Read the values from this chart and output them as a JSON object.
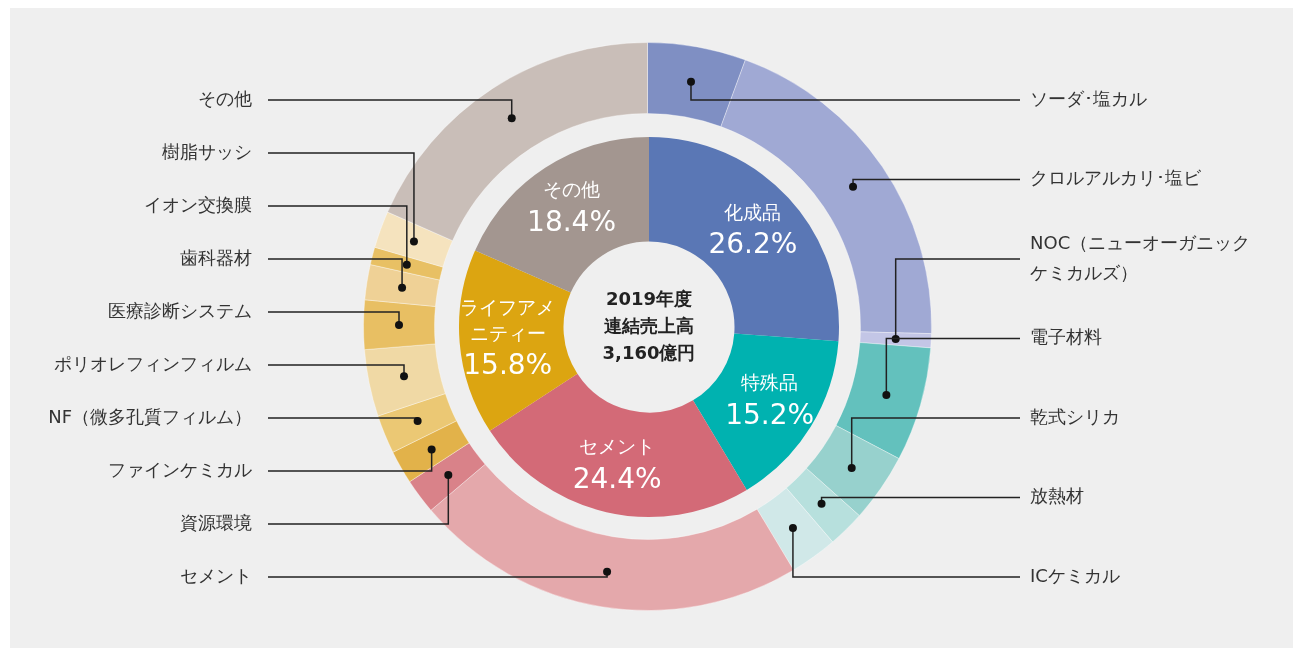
{
  "chart_data": [
    {
      "type": "donut",
      "categories": [
        "ソーダ･塩カル",
        "クロルアルカリ･塩ビ",
        "NOC（ニューオーガニックケミカルズ）",
        "電子材料",
        "乾式シリカ",
        "放熱材",
        "ICケミカル",
        "セメント",
        "資源環境",
        "ファインケミカル",
        "NF（微多孔質フィルム）",
        "ポリオレフィンフィルム",
        "医療診断システム",
        "歯科器材",
        "イオン交換膜",
        "樹脂サッシ",
        "その他"
      ],
      "values": [
        5.6,
        19.8,
        0.8,
        6.5,
        3.9,
        2.1,
        2.7,
        22.4,
        2.0,
        1.9,
        2.2,
        3.8,
        2.8,
        2.0,
        1.0,
        2.1,
        18.4
      ],
      "colors": [
        "#7f8fc3",
        "#a0a9d4",
        "#c3c6e6",
        "#63c1bd",
        "#97d1cd",
        "#b7e0dd",
        "#d0e8e8",
        "#e4a8ab",
        "#d98289",
        "#e2b24a",
        "#ebc874",
        "#f0d9a5",
        "#e8bf63",
        "#efd196",
        "#e8c064",
        "#f5e3be",
        "#c9beb8"
      ]
    },
    {
      "type": "donut",
      "title": "2019年度連結売上高3,160億円",
      "categories": [
        "化成品",
        "特殊品",
        "セメント",
        "ライフアメニティー",
        "その他"
      ],
      "values": [
        26.2,
        15.2,
        24.4,
        15.8,
        18.4
      ],
      "value_labels": [
        "26.2%",
        "15.2%",
        "24.4%",
        "15.8%",
        "18.4%"
      ],
      "colors": [
        "#5a77b5",
        "#00b2b0",
        "#d36a77",
        "#dca511",
        "#a39690"
      ]
    }
  ]
}
